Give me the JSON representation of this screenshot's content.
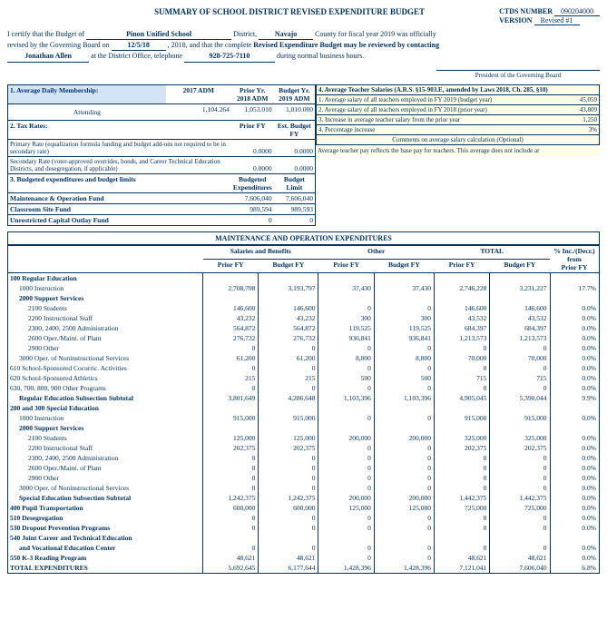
{
  "header": {
    "title": "SUMMARY OF SCHOOL DISTRICT REVISED EXPENDITURE BUDGET",
    "ctds_lbl": "CTDS NUMBER",
    "ctds": "090204000",
    "ver_lbl": "VERSION",
    "ver": "Revised #1"
  },
  "cert": {
    "l1a": "I certify that the Budget of",
    "district": "Pinon Unified School",
    "l1b": "District,",
    "county": "Navajo",
    "l1c": "County for fiscal year 2019 was officially",
    "l2a": "revised by the Governing Board on",
    "date": "12/5/18",
    "l2b": ", 2018, and that the complete",
    "l2c": "Revised Expenditure Budget may be reviewed by contacting",
    "name": "Jonathan Allen",
    "l3a": "at the District Office, telephone",
    "phone": "928-725-7110",
    "l3b": "during normal business hours.",
    "sig": "President of the Governing Board"
  },
  "adm": {
    "h": "1. Average Daily Membership:",
    "c1": "2017 ADM",
    "c2": "Prior Yr.\n2018 ADM",
    "c3": "Budget Yr.\n2019 ADM",
    "row": "Attending",
    "v1": "1,104.264",
    "v2": "1,053.010",
    "v3": "1,010.000"
  },
  "tax": {
    "h": "2.  Tax Rates:",
    "c1": "Prior FY",
    "c2": "Est. Budget FY",
    "r1": "Primary Rate (equalization formula funding and budget add-ons not required to be in secondary rate)",
    "v1a": "0.0000",
    "v1b": "0.0000",
    "r2": "Secondary Rate (voter-approved overrides, bonds, and Career Technical Education Districts, and desegregation, if applicable)",
    "v2a": "0.0000",
    "v2b": "0.0000"
  },
  "budg": {
    "h": "3.  Budgeted expenditures and budget limits",
    "c1": "Budgeted\nExpenditures",
    "c2": "Budget Limit",
    "r1": "Maintenance & Operation Fund",
    "v1a": "7,606,040",
    "v1b": "7,606,040",
    "r2": "Classroom Site Fund",
    "v2a": "989,594",
    "v2b": "989,593",
    "r3": "Unrestricted Capital Outlay Fund",
    "v3a": "0",
    "v3b": "0"
  },
  "sal": {
    "h": "4. Average Teacher Salaries (A.R.S. §15-903.E, amended by Laws 2018, Ch. 285, §10)",
    "r1": "1. Average salary of all teachers employed in FY 2019 (budget year)",
    "v1": "45,059",
    "r2": "2. Average salary of all teachers employed in FY 2018 (prior year)",
    "v2": "43,809",
    "r3": "3. Increase in average teacher salary from the prior year",
    "v3": "1,250",
    "r4": "4. Percentage increase",
    "v4": "3%",
    "r5": "Comments on average salary calculation (Optional)",
    "note": "Average teacher pay reflects the base pay for teachers.  This average does not include ar"
  },
  "m": {
    "title": "MAINTENANCE AND OPERATION EXPENDITURES",
    "g1": "Salaries and Benefits",
    "g2": "Other",
    "g3": "TOTAL",
    "g4": "% Inc./(Decr.)\nfrom\nPrior FY",
    "pf": "Prior FY",
    "bf": "Budget FY",
    "rows": [
      {
        "l": "100 Regular Education",
        "b": 1
      },
      {
        "l": "1000 Instruction",
        "i": 1,
        "v": [
          "2,708,798",
          "3,193,797",
          "37,430",
          "37,430",
          "2,746,228",
          "3,231,227",
          "17.7%"
        ]
      },
      {
        "l": "2000 Support Services",
        "i": 1,
        "b": 1
      },
      {
        "l": "2100 Students",
        "i": 2,
        "v": [
          "146,600",
          "146,600",
          "0",
          "0",
          "146,600",
          "146,600",
          "0.0%"
        ]
      },
      {
        "l": "2200 Instructional Staff",
        "i": 2,
        "v": [
          "43,232",
          "43,232",
          "300",
          "300",
          "43,532",
          "43,532",
          "0.0%"
        ]
      },
      {
        "l": "2300, 2400, 2500 Administration",
        "i": 2,
        "v": [
          "564,872",
          "564,872",
          "119,525",
          "119,525",
          "684,397",
          "684,397",
          "0.0%"
        ]
      },
      {
        "l": "2600 Oper./Maint. of Plant",
        "i": 2,
        "v": [
          "276,732",
          "276,732",
          "936,841",
          "936,841",
          "1,213,573",
          "1,213,573",
          "0.0%"
        ]
      },
      {
        "l": "2900 Other",
        "i": 2,
        "v": [
          "0",
          "0",
          "0",
          "0",
          "0",
          "0",
          "0.0%"
        ]
      },
      {
        "l": "3000 Oper. of Noninstructional Services",
        "i": 1,
        "v": [
          "61,200",
          "61,200",
          "8,800",
          "8,800",
          "70,000",
          "70,000",
          "0.0%"
        ]
      },
      {
        "l": "610 School-Sponsored Cocurric. Activities",
        "v": [
          "0",
          "0",
          "0",
          "0",
          "0",
          "0",
          "0.0%"
        ]
      },
      {
        "l": "620 School-Sponsored Athletics",
        "v": [
          "215",
          "215",
          "500",
          "500",
          "715",
          "715",
          "0.0%"
        ]
      },
      {
        "l": "630, 700, 800, 900 Other Programs",
        "v": [
          "0",
          "0",
          "0",
          "0",
          "0",
          "0",
          "0.0%"
        ]
      },
      {
        "l": "Regular Education Subsection Subtotal",
        "i": 1,
        "b": 1,
        "v": [
          "3,801,649",
          "4,286,648",
          "1,103,396",
          "1,103,396",
          "4,905,045",
          "5,390,044",
          "9.9%"
        ]
      },
      {
        "l": "200 and 300 Special Education",
        "b": 1
      },
      {
        "l": "1000 Instruction",
        "i": 1,
        "v": [
          "915,000",
          "915,000",
          "0",
          "0",
          "915,000",
          "915,000",
          "0.0%"
        ]
      },
      {
        "l": "2000 Support Services",
        "i": 1,
        "b": 1
      },
      {
        "l": "2100 Students",
        "i": 2,
        "v": [
          "125,000",
          "125,000",
          "200,000",
          "200,000",
          "325,000",
          "325,000",
          "0.0%"
        ]
      },
      {
        "l": "2200 Instructional Staff",
        "i": 2,
        "v": [
          "202,375",
          "202,375",
          "0",
          "0",
          "202,375",
          "202,375",
          "0.0%"
        ]
      },
      {
        "l": "2300, 2400, 2500 Administration",
        "i": 2,
        "v": [
          "0",
          "0",
          "0",
          "0",
          "0",
          "0",
          "0.0%"
        ]
      },
      {
        "l": "2600 Oper./Maint. of Plant",
        "i": 2,
        "v": [
          "0",
          "0",
          "0",
          "0",
          "0",
          "0",
          "0.0%"
        ]
      },
      {
        "l": "2900 Other",
        "i": 2,
        "v": [
          "0",
          "0",
          "0",
          "0",
          "0",
          "0",
          "0.0%"
        ]
      },
      {
        "l": "3000 Oper. of Noninstructional Services",
        "i": 1,
        "v": [
          "0",
          "0",
          "0",
          "0",
          "0",
          "0",
          "0.0%"
        ]
      },
      {
        "l": "Special Education Subsection Subtotal",
        "i": 1,
        "b": 1,
        "v": [
          "1,242,375",
          "1,242,375",
          "200,000",
          "200,000",
          "1,442,375",
          "1,442,375",
          "0.0%"
        ]
      },
      {
        "l": "400 Pupil Transportation",
        "b": 1,
        "v": [
          "600,000",
          "600,000",
          "125,000",
          "125,000",
          "725,000",
          "725,000",
          "0.0%"
        ]
      },
      {
        "l": "510 Desegregation",
        "b": 1,
        "v": [
          "0",
          "0",
          "0",
          "0",
          "0",
          "0",
          "0.0%"
        ]
      },
      {
        "l": "530 Dropout Prevention Programs",
        "b": 1,
        "v": [
          "0",
          "0",
          "0",
          "0",
          "0",
          "0",
          "0.0%"
        ]
      },
      {
        "l": "540 Joint Career and Technical Education",
        "b": 1
      },
      {
        "l": "and Vocational Education Center",
        "i": 1,
        "b": 1,
        "v": [
          "0",
          "0",
          "0",
          "0",
          "0",
          "0",
          "0.0%"
        ]
      },
      {
        "l": "550 K-3 Reading Program",
        "b": 1,
        "v": [
          "48,621",
          "48,621",
          "0",
          "0",
          "48,621",
          "48,621",
          "0.0%"
        ]
      },
      {
        "l": "TOTAL EXPENDITURES",
        "b": 1,
        "v": [
          "5,692,645",
          "6,177,644",
          "1,428,396",
          "1,428,396",
          "7,121,041",
          "7,606,040",
          "6.8%"
        ]
      }
    ]
  }
}
